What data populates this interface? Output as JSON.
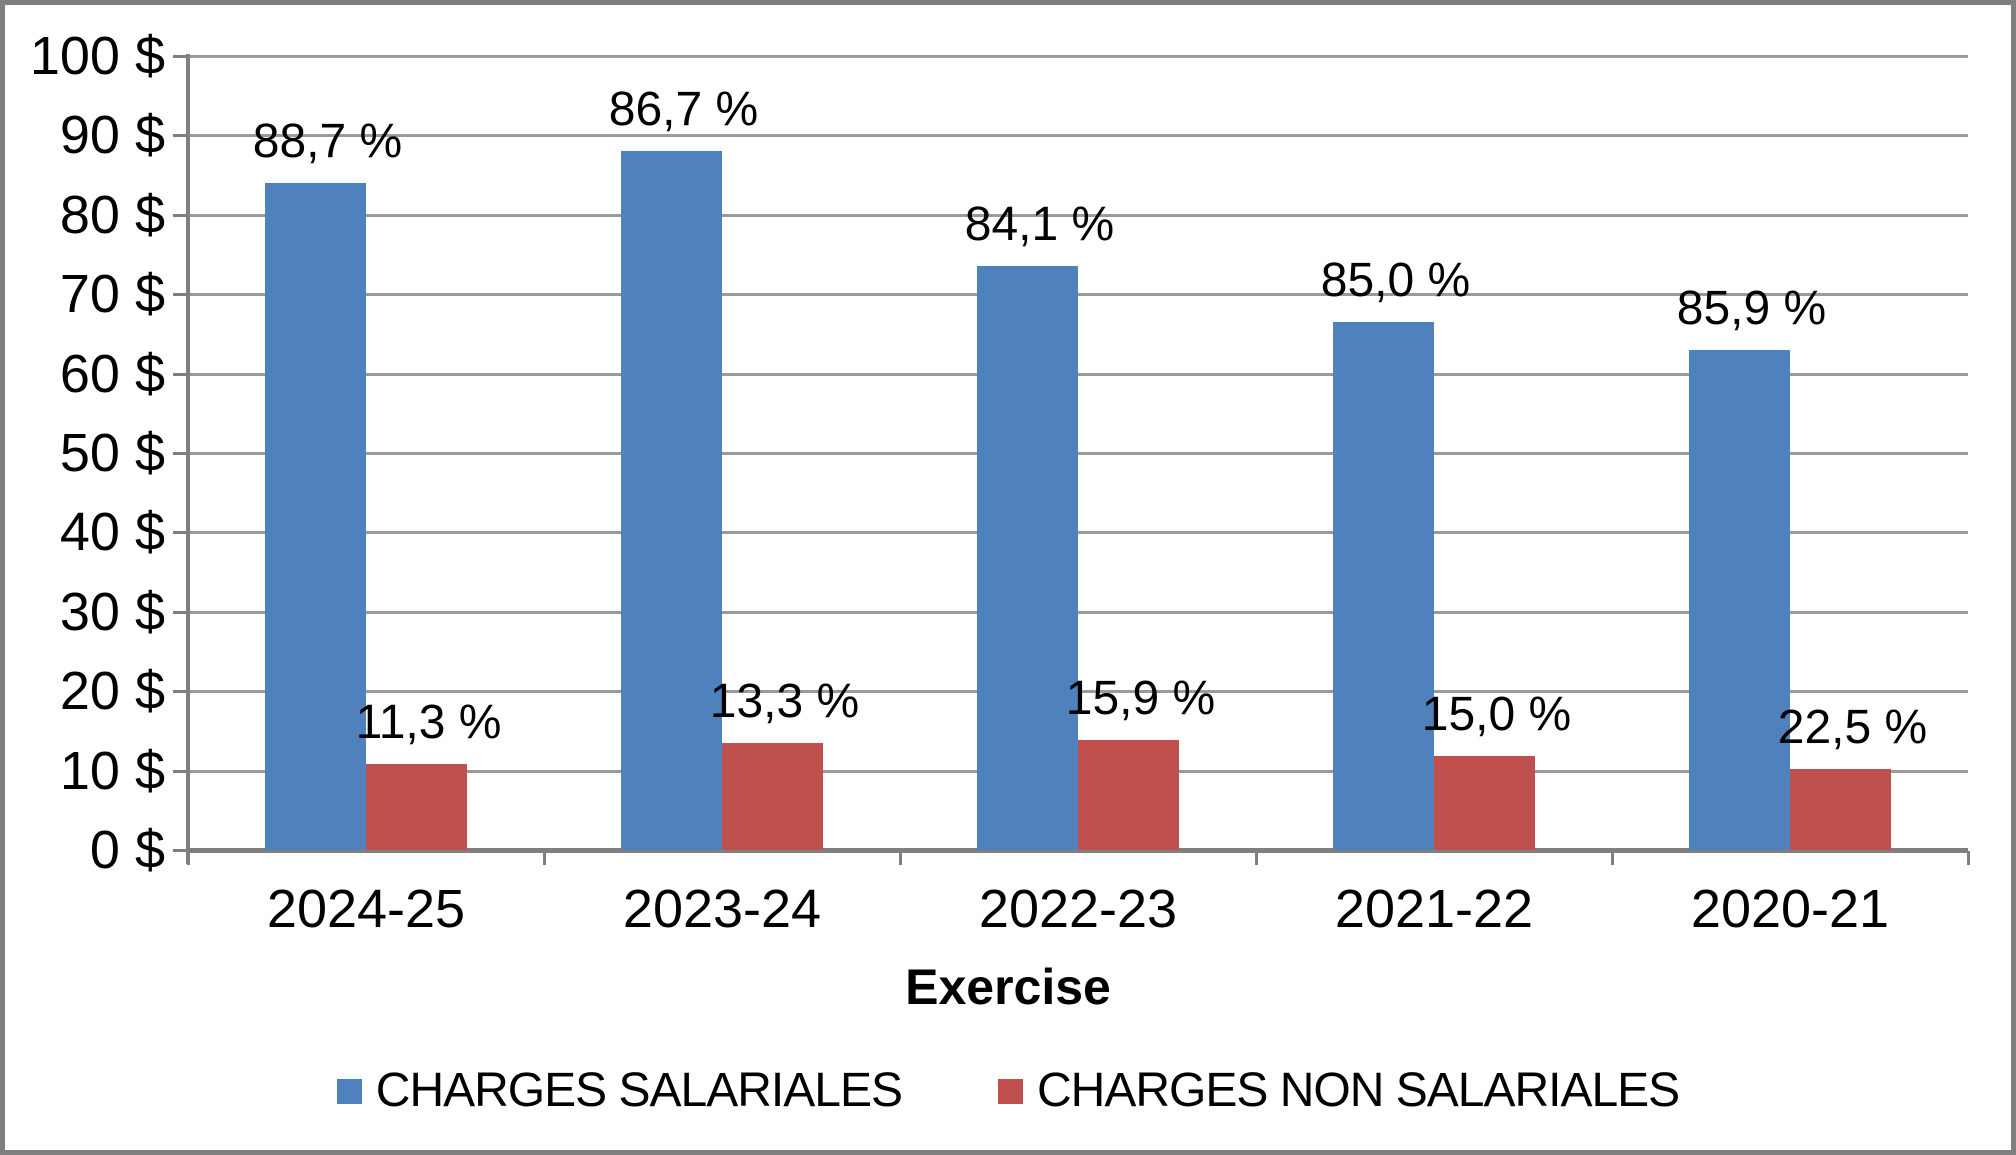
{
  "chart_data": {
    "type": "bar",
    "title": "",
    "xlabel": "Exercise",
    "ylabel": "",
    "categories": [
      "2024-25",
      "2023-24",
      "2022-23",
      "2021-22",
      "2020-21"
    ],
    "series": [
      {
        "name": "CHARGES SALARIALES",
        "color": "#4F81BD",
        "values": [
          84,
          88,
          73.5,
          66.5,
          63
        ],
        "labels": [
          "88,7 %",
          "86,7 %",
          "84,1 %",
          "85,0 %",
          "85,9 %"
        ]
      },
      {
        "name": "CHARGES NON SALARIALES",
        "color": "#C0504D",
        "values": [
          10.8,
          13.5,
          13.8,
          11.8,
          10.2
        ],
        "labels": [
          "11,3 %",
          "13,3 %",
          "15,9 %",
          "15,0 %",
          "22,5 %"
        ]
      }
    ],
    "y_axis": {
      "min": 0,
      "max": 100,
      "step": 10,
      "unit_suffix": " $",
      "ticks": [
        "0 $",
        "10 $",
        "20 $",
        "30 $",
        "40 $",
        "50 $",
        "60 $",
        "70 $",
        "80 $",
        "90 $",
        "100 $"
      ]
    },
    "grid": true,
    "legend_position": "bottom"
  },
  "colors": {
    "series_blue": "#4F81BD",
    "series_red": "#C0504D",
    "gridline": "#9A9A9A",
    "axis": "#7F7F7F",
    "frame_border": "#7F7F7F",
    "background": "#FFFFFF",
    "text": "#000000"
  }
}
